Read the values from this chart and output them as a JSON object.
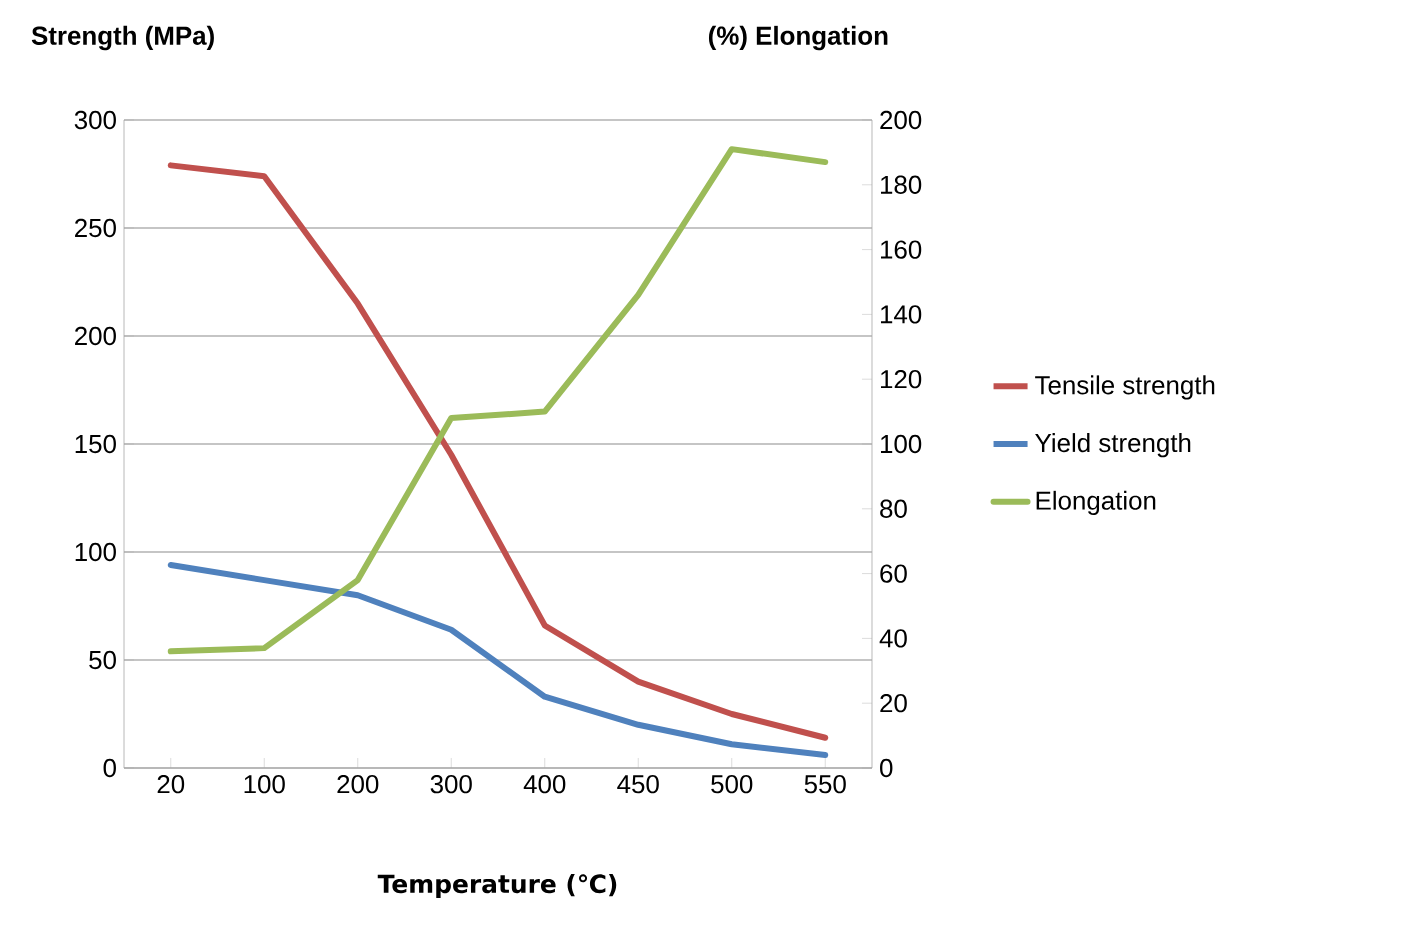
{
  "chart_data": {
    "type": "line",
    "ylabel": "Strength (MPa)",
    "y2label": "(%) Elongation",
    "xlabel": "Temperature (℃)",
    "categories": [
      "20",
      "100",
      "200",
      "300",
      "400",
      "450",
      "500",
      "550"
    ],
    "series": [
      {
        "name": "Tensile strength",
        "color": "#c0504d",
        "values": [
          279,
          274,
          215,
          145,
          66,
          40,
          25,
          14
        ]
      },
      {
        "name": "Yield strength",
        "color": "#4f81bd",
        "values": [
          94,
          87,
          80,
          64,
          33,
          20,
          11,
          6
        ]
      },
      {
        "name": "Elongation",
        "color": "#9bbb59",
        "axis": "y2",
        "values": [
          36,
          37,
          58,
          108,
          110,
          146,
          191,
          187
        ]
      }
    ],
    "ylim": [
      0,
      300
    ],
    "yticks": [
      0,
      50,
      100,
      150,
      200,
      250,
      300
    ],
    "y2lim": [
      0,
      200
    ],
    "y2ticks": [
      0,
      20,
      40,
      60,
      80,
      100,
      120,
      140,
      160,
      180,
      200
    ],
    "grid": "y",
    "legend": "right",
    "marker": "none",
    "line_style": "solid"
  }
}
